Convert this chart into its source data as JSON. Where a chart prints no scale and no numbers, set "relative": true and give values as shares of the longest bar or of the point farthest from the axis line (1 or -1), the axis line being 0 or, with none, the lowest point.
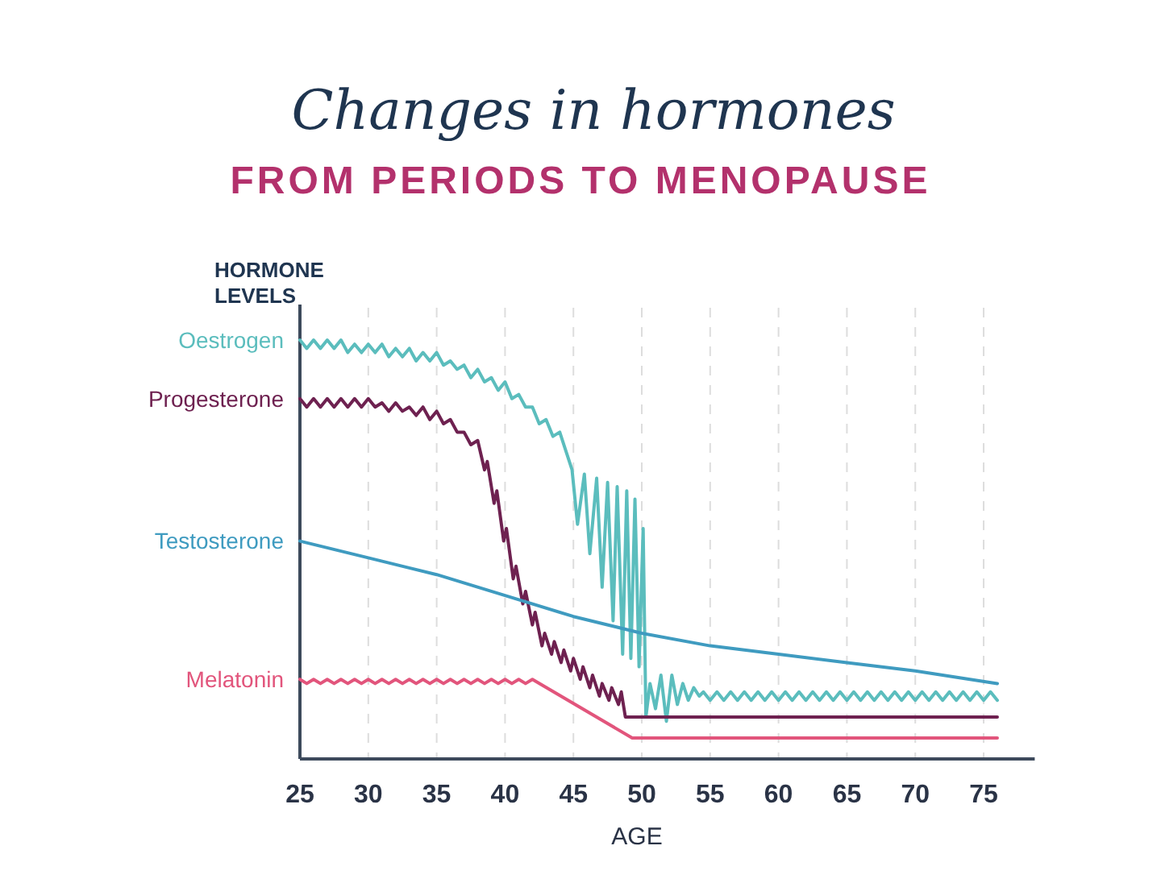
{
  "chart_data": {
    "type": "line",
    "title": "Changes in hormones",
    "subtitle": "FROM PERIODS TO MENOPAUSE",
    "ylabel": "HORMONE LEVELS",
    "xlabel": "AGE",
    "relative": true,
    "grid": "x",
    "legend": false,
    "line_style": "solid",
    "xlim": [
      25,
      78.5
    ],
    "xticks": [
      25,
      30,
      35,
      40,
      45,
      50,
      55,
      60,
      65,
      70,
      75
    ],
    "series": [
      {
        "name": "Oestrogen",
        "color": "#5bbdbd",
        "x": [
          25,
          25.5,
          26,
          26.5,
          27,
          27.5,
          28,
          28.5,
          29,
          29.5,
          30,
          30.5,
          31,
          31.5,
          32,
          32.5,
          33,
          33.5,
          34,
          34.5,
          35,
          35.5,
          36,
          36.5,
          37,
          37.5,
          38,
          38.5,
          39,
          39.5,
          40,
          40.5,
          41,
          41.5,
          42,
          42.5,
          43,
          43.5,
          44,
          44.5,
          44.9,
          45.3,
          45.8,
          46.2,
          46.7,
          47.1,
          47.5,
          47.9,
          48.2,
          48.6,
          48.9,
          49.2,
          49.5,
          49.8,
          50.1,
          50.3,
          50.6,
          51,
          51.4,
          51.8,
          52.2,
          52.6,
          53,
          53.4,
          53.8,
          54.2,
          54.5,
          55,
          55.5,
          56,
          56.5,
          57,
          57.5,
          58,
          58.5,
          59,
          59.5,
          60,
          60.5,
          61,
          61.5,
          62,
          62.5,
          63,
          63.5,
          64,
          64.5,
          65,
          65.5,
          66,
          66.5,
          67,
          67.5,
          68,
          68.5,
          69,
          69.5,
          70,
          70.5,
          71,
          71.5,
          72,
          72.5,
          73,
          73.5,
          74,
          74.5,
          75,
          75.5,
          76
        ],
        "values": [
          1.0,
          0.98,
          1.0,
          0.98,
          1.0,
          0.98,
          1.0,
          0.97,
          0.99,
          0.97,
          0.99,
          0.97,
          0.99,
          0.96,
          0.98,
          0.96,
          0.98,
          0.95,
          0.97,
          0.95,
          0.97,
          0.94,
          0.95,
          0.93,
          0.94,
          0.91,
          0.93,
          0.9,
          0.91,
          0.88,
          0.9,
          0.86,
          0.87,
          0.84,
          0.84,
          0.8,
          0.81,
          0.77,
          0.78,
          0.73,
          0.69,
          0.56,
          0.68,
          0.49,
          0.67,
          0.41,
          0.66,
          0.33,
          0.65,
          0.25,
          0.64,
          0.24,
          0.62,
          0.22,
          0.55,
          0.1,
          0.18,
          0.12,
          0.2,
          0.09,
          0.2,
          0.13,
          0.18,
          0.14,
          0.17,
          0.15,
          0.16,
          0.14,
          0.16,
          0.14,
          0.16,
          0.14,
          0.16,
          0.14,
          0.16,
          0.14,
          0.16,
          0.14,
          0.16,
          0.14,
          0.16,
          0.14,
          0.16,
          0.14,
          0.16,
          0.14,
          0.16,
          0.14,
          0.16,
          0.14,
          0.16,
          0.14,
          0.16,
          0.14,
          0.16,
          0.14,
          0.16,
          0.14,
          0.16,
          0.14,
          0.16,
          0.14,
          0.16,
          0.14,
          0.16,
          0.14,
          0.16,
          0.14,
          0.16,
          0.14
        ]
      },
      {
        "name": "Progesterone",
        "color": "#6e2150",
        "x": [
          25,
          25.5,
          26,
          26.5,
          27,
          27.5,
          28,
          28.5,
          29,
          29.5,
          30,
          30.5,
          31,
          31.5,
          32,
          32.5,
          33,
          33.5,
          34,
          34.5,
          35,
          35.5,
          36,
          36.5,
          37,
          37.5,
          38,
          38.5,
          38.7,
          39.2,
          39.4,
          39.9,
          40.1,
          40.6,
          40.8,
          41.3,
          41.5,
          42,
          42.2,
          42.7,
          42.9,
          43.4,
          43.6,
          44.1,
          44.3,
          44.8,
          45,
          45.5,
          45.7,
          46.2,
          46.4,
          46.9,
          47.1,
          47.6,
          47.8,
          48.3,
          48.5,
          48.8,
          76
        ],
        "values": [
          0.86,
          0.84,
          0.86,
          0.84,
          0.86,
          0.84,
          0.86,
          0.84,
          0.86,
          0.84,
          0.86,
          0.84,
          0.85,
          0.83,
          0.85,
          0.83,
          0.84,
          0.82,
          0.84,
          0.81,
          0.83,
          0.8,
          0.81,
          0.78,
          0.78,
          0.75,
          0.76,
          0.69,
          0.71,
          0.61,
          0.64,
          0.52,
          0.55,
          0.43,
          0.46,
          0.37,
          0.4,
          0.32,
          0.35,
          0.27,
          0.3,
          0.25,
          0.28,
          0.23,
          0.26,
          0.21,
          0.24,
          0.19,
          0.22,
          0.17,
          0.2,
          0.15,
          0.18,
          0.14,
          0.17,
          0.13,
          0.16,
          0.1,
          0.1
        ]
      },
      {
        "name": "Testosterone",
        "color": "#3f9bc0",
        "x": [
          25,
          30,
          35,
          40,
          45,
          50,
          55,
          60,
          65,
          70,
          76
        ],
        "values": [
          0.52,
          0.48,
          0.44,
          0.39,
          0.34,
          0.3,
          0.27,
          0.25,
          0.23,
          0.21,
          0.18
        ]
      },
      {
        "name": "Melatonin",
        "color": "#e2557c",
        "x": [
          25,
          25.5,
          26,
          26.5,
          27,
          27.5,
          28,
          28.5,
          29,
          29.5,
          30,
          30.5,
          31,
          31.5,
          32,
          32.5,
          33,
          33.5,
          34,
          34.5,
          35,
          35.5,
          36,
          36.5,
          37,
          37.5,
          38,
          38.5,
          39,
          39.5,
          40,
          40.5,
          41,
          41.5,
          42,
          49.3,
          76
        ],
        "values": [
          0.19,
          0.18,
          0.19,
          0.18,
          0.19,
          0.18,
          0.19,
          0.18,
          0.19,
          0.18,
          0.19,
          0.18,
          0.19,
          0.18,
          0.19,
          0.18,
          0.19,
          0.18,
          0.19,
          0.18,
          0.19,
          0.18,
          0.19,
          0.18,
          0.19,
          0.18,
          0.19,
          0.18,
          0.19,
          0.18,
          0.19,
          0.18,
          0.19,
          0.18,
          0.19,
          0.05,
          0.05
        ]
      }
    ]
  }
}
